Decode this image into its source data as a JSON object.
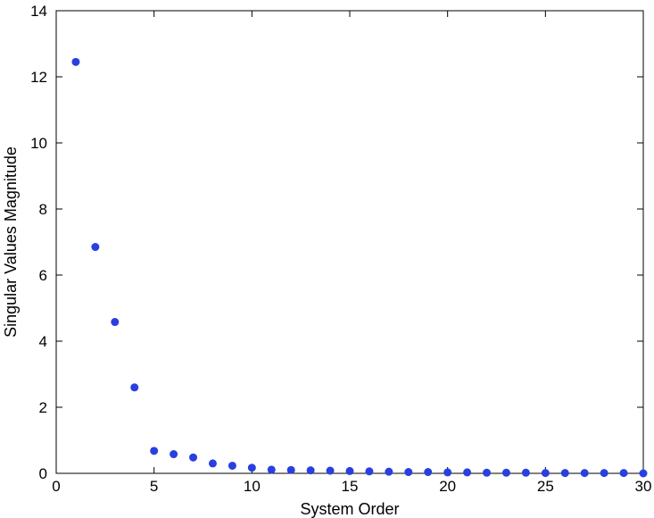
{
  "chart_data": {
    "type": "scatter",
    "title": "",
    "xlabel": "System Order",
    "ylabel": "Singular Values Magnitude",
    "xlim": [
      0,
      30
    ],
    "ylim": [
      0,
      14
    ],
    "xticks": [
      0,
      5,
      10,
      15,
      20,
      25,
      30
    ],
    "yticks": [
      0,
      2,
      4,
      6,
      8,
      10,
      12,
      14
    ],
    "grid": false,
    "marker_color": "#2a3fe0",
    "series": [
      {
        "x": [
          1,
          2,
          3,
          4,
          5,
          6,
          7,
          8,
          9,
          10,
          11,
          12,
          13,
          14,
          15,
          16,
          17,
          18,
          19,
          20,
          21,
          22,
          23,
          24,
          25,
          26,
          27,
          28,
          29,
          30
        ],
        "y": [
          12.45,
          6.85,
          4.58,
          2.6,
          0.68,
          0.58,
          0.48,
          0.3,
          0.23,
          0.17,
          0.11,
          0.1,
          0.09,
          0.08,
          0.07,
          0.06,
          0.05,
          0.04,
          0.04,
          0.03,
          0.03,
          0.02,
          0.02,
          0.02,
          0.01,
          0.01,
          0.01,
          0.01,
          0.01,
          0.0
        ]
      }
    ]
  }
}
